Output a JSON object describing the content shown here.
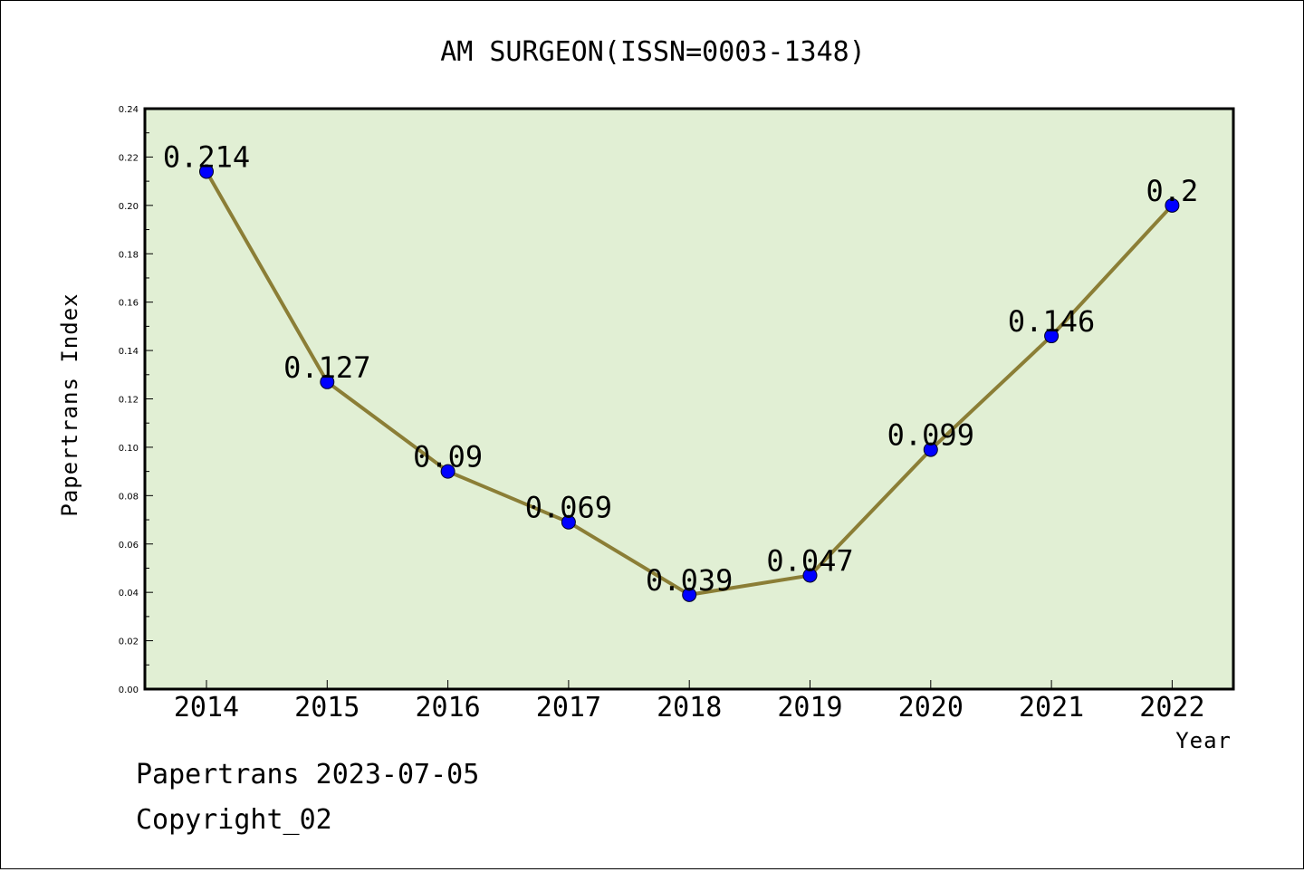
{
  "chart_data": {
    "type": "line",
    "title": "AM SURGEON(ISSN=0003-1348)",
    "xlabel": "Year",
    "ylabel": "Papertrans Index",
    "categories": [
      "2014",
      "2015",
      "2016",
      "2017",
      "2018",
      "2019",
      "2020",
      "2021",
      "2022"
    ],
    "series": [
      {
        "values": [
          0.214,
          0.127,
          0.09,
          0.069,
          0.039,
          0.047,
          0.099,
          0.146,
          0.2
        ]
      }
    ],
    "data_labels": [
      "0.214",
      "0.127",
      "0.09",
      "0.069",
      "0.039",
      "0.047",
      "0.099",
      "0.146",
      "0.2"
    ],
    "ylim": [
      0,
      0.24
    ],
    "yticks": [
      "0.00",
      "0.02",
      "0.04",
      "0.06",
      "0.08",
      "0.10",
      "0.12",
      "0.14",
      "0.16",
      "0.18",
      "0.20",
      "0.22",
      "0.24"
    ],
    "grid": false,
    "colors": {
      "plot_background": "#e1efd4",
      "line": "#8b7e36",
      "marker": "#0000ff"
    }
  },
  "footer": {
    "line1": "Papertrans 2023-07-05",
    "line2": "Copyright_02"
  }
}
